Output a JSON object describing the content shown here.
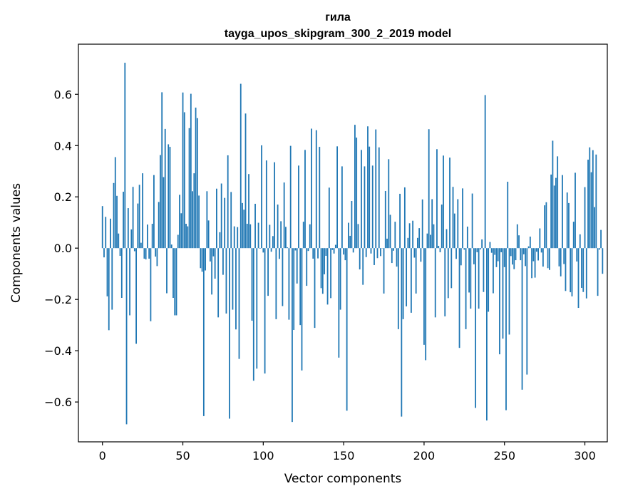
{
  "chart_data": {
    "type": "bar",
    "title": "гила",
    "subtitle": "tayga_upos_skipgram_300_2_2019 model",
    "xlabel": "Vector components",
    "ylabel": "Components values",
    "xlim": [
      -14.95,
      313.95
    ],
    "ylim": [
      -0.7554,
      0.7954
    ],
    "xticks": [
      0,
      50,
      100,
      150,
      200,
      250,
      300
    ],
    "yticks": [
      -0.6,
      -0.4,
      -0.2,
      0.0,
      0.2,
      0.4,
      0.6
    ],
    "ytick_labels": [
      "−0.6",
      "−0.4",
      "−0.2",
      "0.0",
      "0.2",
      "0.4",
      "0.6"
    ],
    "bar_color": "#1f77b4",
    "values": [
      0.164,
      -0.036,
      0.122,
      -0.188,
      -0.32,
      0.115,
      -0.24,
      0.254,
      0.355,
      0.204,
      0.057,
      -0.03,
      -0.194,
      0.22,
      0.723,
      -0.687,
      0.156,
      -0.262,
      0.073,
      0.239,
      -0.012,
      -0.373,
      0.174,
      0.247,
      0.021,
      0.292,
      -0.041,
      -0.044,
      0.092,
      -0.041,
      -0.285,
      0.095,
      0.285,
      -0.033,
      -0.07,
      0.18,
      0.363,
      0.608,
      0.277,
      0.465,
      -0.176,
      0.405,
      0.395,
      0.014,
      -0.194,
      -0.262,
      -0.262,
      0.052,
      0.208,
      0.136,
      0.607,
      0.53,
      0.095,
      0.085,
      0.468,
      0.602,
      0.222,
      0.292,
      0.548,
      0.507,
      0.205,
      -0.078,
      -0.092,
      -0.655,
      -0.087,
      0.222,
      0.108,
      -0.052,
      -0.181,
      -0.032,
      -0.119,
      0.232,
      -0.27,
      0.062,
      0.252,
      -0.104,
      0.196,
      -0.255,
      0.362,
      -0.665,
      0.219,
      -0.24,
      0.085,
      -0.317,
      0.082,
      -0.432,
      0.641,
      0.176,
      0.15,
      0.525,
      0.095,
      0.289,
      0.093,
      -0.283,
      -0.517,
      0.173,
      -0.47,
      0.099,
      -0.002,
      0.401,
      -0.017,
      -0.489,
      0.342,
      -0.186,
      0.091,
      -0.014,
      0.047,
      0.335,
      -0.277,
      0.17,
      -0.042,
      0.105,
      -0.226,
      0.256,
      0.083,
      0.003,
      -0.279,
      0.399,
      -0.678,
      -0.319,
      -0.009,
      -0.138,
      0.322,
      -0.3,
      -0.477,
      0.103,
      0.383,
      -0.147,
      -0.011,
      0.093,
      0.466,
      -0.041,
      -0.311,
      0.46,
      -0.04,
      0.395,
      -0.156,
      -0.178,
      -0.102,
      -0.03,
      -0.22,
      0.236,
      -0.195,
      -0.007,
      -0.021,
      0.013,
      0.397,
      -0.427,
      -0.24,
      0.319,
      -0.025,
      -0.047,
      -0.634,
      0.099,
      0.048,
      0.184,
      -0.017,
      0.481,
      0.431,
      0.094,
      -0.083,
      0.383,
      -0.143,
      0.319,
      -0.035,
      0.475,
      0.396,
      -0.021,
      0.322,
      -0.066,
      0.463,
      -0.039,
      0.393,
      -0.031,
      -0.001,
      -0.177,
      0.223,
      0.037,
      0.347,
      0.13,
      -0.058,
      -0.01,
      0.103,
      -0.072,
      -0.316,
      0.212,
      -0.657,
      -0.277,
      0.237,
      -0.227,
      0.04,
      0.097,
      -0.252,
      0.107,
      -0.037,
      -0.177,
      0.04,
      0.078,
      -0.053,
      0.19,
      -0.377,
      -0.437,
      0.057,
      0.464,
      0.052,
      0.191,
      0.093,
      -0.27,
      0.386,
      0.009,
      -0.016,
      0.17,
      0.361,
      -0.266,
      0.074,
      -0.195,
      0.353,
      -0.156,
      0.239,
      0.135,
      -0.042,
      0.191,
      -0.389,
      -0.067,
      0.233,
      -0.006,
      -0.316,
      0.084,
      -0.173,
      -0.236,
      0.213,
      -0.063,
      -0.623,
      -0.016,
      -0.236,
      -0.005,
      0.034,
      -0.171,
      0.597,
      -0.672,
      -0.248,
      0.024,
      -0.018,
      -0.176,
      -0.026,
      -0.074,
      -0.051,
      -0.414,
      -0.016,
      -0.353,
      -0.074,
      -0.632,
      0.259,
      -0.337,
      -0.031,
      -0.064,
      -0.082,
      -0.047,
      0.093,
      0.05,
      -0.047,
      -0.552,
      -0.024,
      -0.07,
      -0.493,
      0.007,
      0.045,
      -0.117,
      -0.051,
      -0.115,
      -0.014,
      -0.048,
      0.077,
      -0.017,
      -0.072,
      0.167,
      0.179,
      -0.078,
      -0.085,
      0.287,
      0.419,
      0.244,
      0.274,
      0.358,
      -0.071,
      -0.11,
      0.285,
      -0.062,
      -0.167,
      0.217,
      0.176,
      -0.172,
      -0.188,
      0.103,
      0.294,
      -0.052,
      -0.233,
      0.054,
      -0.155,
      -0.171,
      0.238,
      -0.196,
      0.345,
      0.393,
      0.296,
      0.382,
      0.16,
      0.365,
      -0.186,
      -0.006,
      0.071,
      -0.1
    ]
  }
}
